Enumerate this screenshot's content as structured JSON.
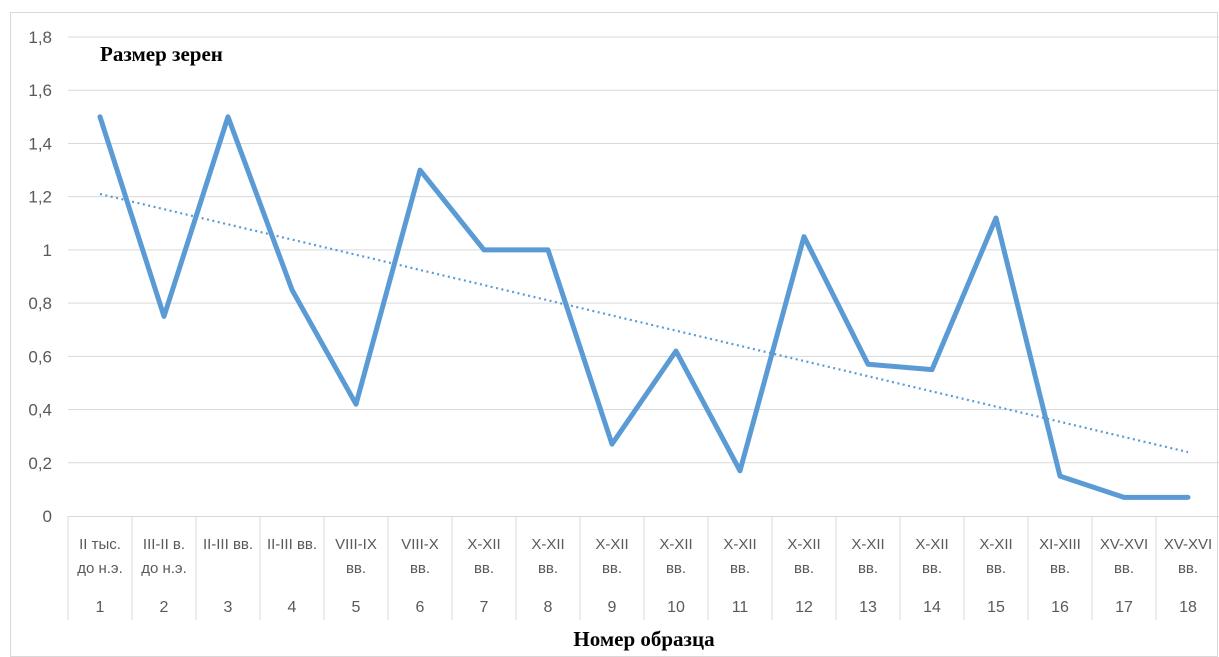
{
  "chart_data": {
    "type": "line",
    "title": "Размер зерен",
    "xlabel": "Номер образца",
    "ylabel": "",
    "ylim": [
      0,
      1.8
    ],
    "yticks": [
      "0",
      "0,2",
      "0,4",
      "0,6",
      "0,8",
      "1",
      "1,2",
      "1,4",
      "1,6",
      "1,8"
    ],
    "grid": "horizontal",
    "categories": [
      {
        "num": "1",
        "period": [
          "II тыс.",
          "до н.э."
        ]
      },
      {
        "num": "2",
        "period": [
          "III-II в.",
          "до н.э."
        ]
      },
      {
        "num": "3",
        "period": [
          "II-III вв."
        ]
      },
      {
        "num": "4",
        "period": [
          "II-III вв."
        ]
      },
      {
        "num": "5",
        "period": [
          "VIII-IX",
          "вв."
        ]
      },
      {
        "num": "6",
        "period": [
          "VIII-X",
          "вв."
        ]
      },
      {
        "num": "7",
        "period": [
          "X-XII",
          "вв."
        ]
      },
      {
        "num": "8",
        "period": [
          "X-XII",
          "вв."
        ]
      },
      {
        "num": "9",
        "period": [
          "X-XII",
          "вв."
        ]
      },
      {
        "num": "10",
        "period": [
          "X-XII",
          "вв."
        ]
      },
      {
        "num": "11",
        "period": [
          "X-XII",
          "вв."
        ]
      },
      {
        "num": "12",
        "period": [
          "X-XII",
          "вв."
        ]
      },
      {
        "num": "13",
        "period": [
          "X-XII",
          "вв."
        ]
      },
      {
        "num": "14",
        "period": [
          "X-XII",
          "вв."
        ]
      },
      {
        "num": "15",
        "period": [
          "X-XII",
          "вв."
        ]
      },
      {
        "num": "16",
        "period": [
          "XI-XIII",
          "вв."
        ]
      },
      {
        "num": "17",
        "period": [
          "XV-XVI",
          "вв."
        ]
      },
      {
        "num": "18",
        "period": [
          "XV-XVI",
          "вв."
        ]
      }
    ],
    "series": [
      {
        "values": [
          1.5,
          0.75,
          1.5,
          0.85,
          0.42,
          1.3,
          1.0,
          1.0,
          0.27,
          0.62,
          0.17,
          1.05,
          0.57,
          0.55,
          1.12,
          0.15,
          0.07,
          0.07
        ],
        "color": "#5b9bd5"
      }
    ],
    "trendline": {
      "type": "linear",
      "color": "#5b9bd5",
      "style": "dotted",
      "from": 1.21,
      "to": 0.24
    }
  }
}
